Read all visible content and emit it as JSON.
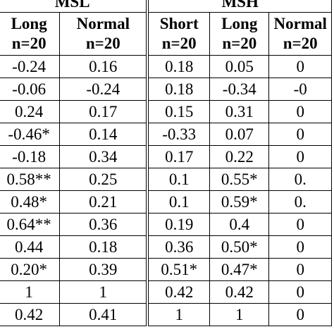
{
  "groups": [
    "MSL",
    "MSH"
  ],
  "columns": [
    {
      "label": "Long",
      "n": "n=20"
    },
    {
      "label": "Normal",
      "n": "n=20"
    },
    {
      "label": "Short",
      "n": "n=20"
    },
    {
      "label": "Long",
      "n": "n=20"
    },
    {
      "label": "Normal",
      "n": "n=20"
    }
  ],
  "rows": [
    [
      "-0.24",
      "0.16",
      "0.18",
      "0.05",
      "0"
    ],
    [
      "-0.06",
      "-0.24",
      "0.18",
      "-0.34",
      "-0"
    ],
    [
      "0.24",
      "0.17",
      "0.15",
      "0.31",
      "0"
    ],
    [
      "-0.46*",
      "0.14",
      "-0.33",
      "0.07",
      "0"
    ],
    [
      "-0.18",
      "0.34",
      "0.17",
      "0.22",
      "0"
    ],
    [
      "0.58**",
      "0.25",
      "0.1",
      "0.55*",
      "0."
    ],
    [
      "0.48*",
      "0.21",
      "0.1",
      "0.59*",
      "0."
    ],
    [
      "0.64**",
      "0.36",
      "0.19",
      "0.4",
      "0"
    ],
    [
      "0.44",
      "0.18",
      "0.36",
      "0.50*",
      "0"
    ],
    [
      "0.20*",
      "0.39",
      "0.51*",
      "0.47*",
      "0"
    ],
    [
      "1",
      "1",
      "0.42",
      "0.42",
      "0"
    ],
    [
      "0.42",
      "0.41",
      "1",
      "1",
      "0"
    ]
  ]
}
